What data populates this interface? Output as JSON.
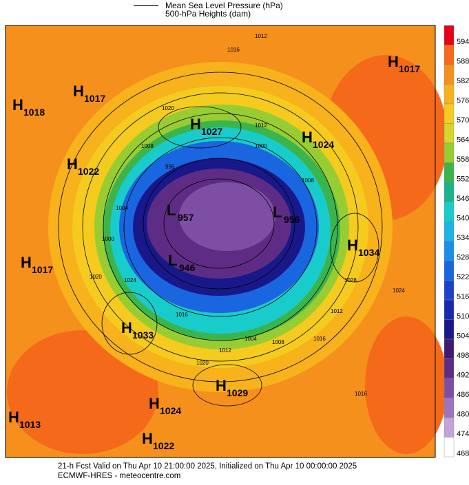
{
  "header": {
    "lines": [
      "Mean Sea Level Pressure (hPa)",
      "500-hPa Heights (dam)"
    ]
  },
  "colorbar": {
    "labels": [
      594,
      588,
      582,
      576,
      570,
      564,
      558,
      552,
      546,
      540,
      534,
      528,
      522,
      516,
      510,
      504,
      498,
      492,
      486,
      480,
      474,
      468
    ],
    "colors": [
      "#e8001a",
      "#f46a1a",
      "#f5901c",
      "#f7b21c",
      "#f4cb1e",
      "#d6d62c",
      "#98cc33",
      "#3cb44c",
      "#1ab38c",
      "#19cccc",
      "#1ab4e8",
      "#1a8ee8",
      "#1a66e0",
      "#1a42cc",
      "#1a28b0",
      "#18188a",
      "#401a70",
      "#5e2c84",
      "#7e4ea4",
      "#9c74c0",
      "#c2a4da",
      "#ffffff"
    ]
  },
  "centers": [
    {
      "type": "H",
      "value": "1018"
    },
    {
      "type": "H",
      "value": "1017"
    },
    {
      "type": "H",
      "value": "1027"
    },
    {
      "type": "H",
      "value": "1024"
    },
    {
      "type": "H",
      "value": "1017"
    },
    {
      "type": "H",
      "value": "1022"
    },
    {
      "type": "H",
      "value": "1017"
    },
    {
      "type": "H",
      "value": "1034"
    },
    {
      "type": "H",
      "value": "1033"
    },
    {
      "type": "H",
      "value": "1029"
    },
    {
      "type": "H",
      "value": "1024"
    },
    {
      "type": "H",
      "value": "1013"
    },
    {
      "type": "H",
      "value": "1022"
    },
    {
      "type": "L",
      "value": "957"
    },
    {
      "type": "L",
      "value": "956"
    },
    {
      "type": "L",
      "value": "946"
    }
  ],
  "contour_labels": [
    "1016",
    "1012",
    "1020",
    "1012",
    "1008",
    "996",
    "1000",
    "1008",
    "1004",
    "1000",
    "1020",
    "1024",
    "1016",
    "1012",
    "1004",
    "1008",
    "1016",
    "1016",
    "1012",
    "1020",
    "1024",
    "1028"
  ],
  "footer": {
    "lines": [
      "21-h Fcst Valid on Thu Apr 10 21:00:00 2025, Initialized on Thu Apr 10 00:00:00 2025",
      "ECMWF-HRES - meteocentre.com"
    ]
  }
}
